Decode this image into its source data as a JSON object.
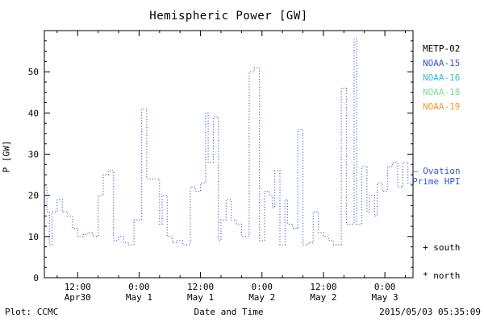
{
  "title": "Hemispheric Power [GW]",
  "axes": {
    "ylabel": "P [GW]",
    "xlabel": "Date and Time"
  },
  "legend": {
    "satellites": [
      {
        "label": "METP-02",
        "color": "#000000"
      },
      {
        "label": "NOAA-15",
        "color": "#3355cc"
      },
      {
        "label": "NOAA-16",
        "color": "#33bbdd"
      },
      {
        "label": "NOAA-18",
        "color": "#77dd99"
      },
      {
        "label": "NOAA-19",
        "color": "#ee9933"
      }
    ],
    "ovation_line1": "– Ovation",
    "ovation_line2": "Prime HPI",
    "ovation_color": "#3355cc",
    "south_label": "+ south",
    "north_label": "* north"
  },
  "footer": {
    "credit": "Plot: CCMC",
    "timestamp": "2015/05/03 05:35:09"
  },
  "chart_data": {
    "type": "line",
    "title": "Hemispheric Power [GW]",
    "xlabel": "Date and Time",
    "ylabel": "P [GW]",
    "ylim": [
      0,
      60
    ],
    "x_domain_hours": [
      5.5,
      77.5
    ],
    "x_major_tick_hours": [
      12,
      24,
      36,
      48,
      60,
      72
    ],
    "x_minor_step_hours": 4,
    "x_tick_labels": [
      {
        "time": "12:00",
        "date": "Apr30"
      },
      {
        "time": "0:00",
        "date": "May 1"
      },
      {
        "time": "12:00",
        "date": "May 1"
      },
      {
        "time": "0:00",
        "date": "May 2"
      },
      {
        "time": "12:00",
        "date": "May 2"
      },
      {
        "time": "0:00",
        "date": "May 3"
      }
    ],
    "y_major_ticks": [
      0,
      10,
      20,
      30,
      40,
      50
    ],
    "y_minor_step": 2.5,
    "grid": false,
    "legend_position": "right",
    "line_color": "#3355cc",
    "line_style": "dotted",
    "step": true,
    "series": [
      {
        "name": "Ovation Prime HPI (NOAA-15)",
        "x_hours": [
          5.5,
          6,
          6.5,
          7,
          8,
          9,
          10,
          11,
          12,
          13,
          14,
          15,
          16,
          17,
          18,
          19,
          20,
          21,
          22,
          23,
          24.5,
          25.5,
          27,
          28,
          28.5,
          29.5,
          30.5,
          31.5,
          32.5,
          33.5,
          34,
          35,
          36,
          37,
          37.5,
          38.5,
          39.5,
          40,
          41,
          42,
          43,
          44,
          45.5,
          46.5,
          47.5,
          48.5,
          49.5,
          50,
          50.5,
          51.5,
          52.5,
          53,
          54,
          55,
          56,
          57,
          58,
          59,
          60,
          61,
          62,
          63.5,
          64.5,
          66,
          66.5,
          67.5,
          68.5,
          69,
          70,
          70.5,
          71.5,
          72.5,
          73.5,
          74.5,
          75.5,
          76.5
        ],
        "values": [
          22,
          16,
          8,
          16,
          19,
          16,
          15,
          12,
          10,
          10.5,
          11,
          10,
          20,
          25,
          26,
          9,
          10,
          8.5,
          8,
          14,
          41,
          24,
          24,
          13,
          20,
          10,
          8.5,
          9,
          8,
          8,
          22,
          21,
          23,
          40,
          28,
          39,
          9,
          14,
          19,
          14,
          13,
          10,
          50,
          51,
          9,
          21,
          20,
          17,
          26,
          8,
          19,
          13,
          12,
          36,
          8,
          8.5,
          16,
          11,
          10,
          9,
          8,
          46,
          13,
          58,
          13,
          27,
          16,
          20,
          15,
          23,
          21,
          27,
          28,
          22,
          28,
          23
        ]
      }
    ]
  }
}
